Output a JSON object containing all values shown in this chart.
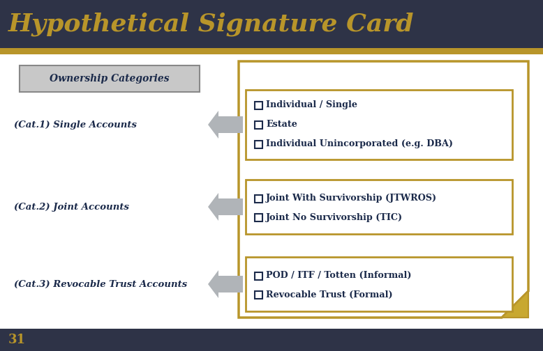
{
  "title": "Hypothetical Signature Card",
  "title_color": "#B8952A",
  "title_bg": "#2E3347",
  "title_fontsize": 26,
  "gold_bar_color": "#B8952A",
  "body_bg": "#FFFFFF",
  "dark_navy": "#1B2A4A",
  "gold_border": "#B8952A",
  "label_bg": "#C8C8C8",
  "label_border": "#888888",
  "ownership_label": "Ownership Categories",
  "categories": [
    "(Cat.1) Single Accounts",
    "(Cat.2) Joint Accounts",
    "(Cat.3) Revocable Trust Accounts"
  ],
  "box_items": [
    [
      "Individual / Single",
      "Estate",
      "Individual Unincorporated (e.g. DBA)"
    ],
    [
      "Joint With Survivorship (JTWROS)",
      "Joint No Survivorship (TIC)"
    ],
    [
      "POD / ITF / Totten (Informal)",
      "Revocable Trust (Formal)"
    ]
  ],
  "footer_text": "31",
  "arrow_color": "#B0B4B8",
  "curl_color": "#C8A830"
}
